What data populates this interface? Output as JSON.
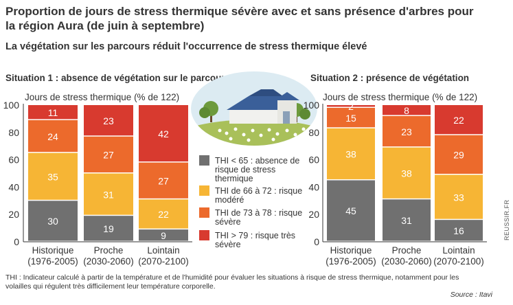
{
  "title": "Proportion de jours de stress thermique sévère avec et sans présence d'arbres pour la région Aura (de juin à septembre)",
  "subtitle": "La végétation sur les parcours réduit l'occurrence de stress thermique élevé",
  "footnote": "THI : Indicateur calculé à partir de la température et de l'humidité pour évaluer les situations à risque de stress thermique, notamment pour les volailles qui régulent très difficilement leur température corporelle.",
  "source": "Source : Itavi",
  "credit": "REUSSIR.FR",
  "colors": {
    "thi_lt65": "#707070",
    "thi_66_72": "#f6b535",
    "thi_73_78": "#ec6a2c",
    "thi_gt79": "#d83a2f",
    "illustration_sky": "#dcebf2",
    "illustration_grass": "#a9c05a",
    "barn_roof": "#3a5f99"
  },
  "icons": [
    "farm-barn-illustration",
    "trees-illustration",
    "poultry-flock-illustration"
  ],
  "chart_data": [
    {
      "type": "bar",
      "stacked": true,
      "title": "Situation 1 : absence de végétation sur le parcours",
      "ylabel": "Jours de stress thermique (% de 122)",
      "ylim": [
        0,
        100
      ],
      "yticks": [
        0,
        20,
        40,
        60,
        80,
        100
      ],
      "grid": false,
      "categories": [
        [
          "Historique",
          "(1976-2005)"
        ],
        [
          "Proche",
          "(2030-2060)"
        ],
        [
          "Lointain",
          "(2070-2100)"
        ]
      ],
      "series": [
        {
          "name": "THI < 65 : absence de risque de stress thermique",
          "color": "#707070",
          "values": [
            30,
            19,
            9
          ]
        },
        {
          "name": "THI de 66 à 72 : risque modéré",
          "color": "#f6b535",
          "values": [
            35,
            31,
            22
          ]
        },
        {
          "name": "THI de 73 à 78 : risque sévère",
          "color": "#ec6a2c",
          "values": [
            24,
            27,
            27
          ]
        },
        {
          "name": "THI > 79 : risque très sévère",
          "color": "#d83a2f",
          "values": [
            11,
            23,
            42
          ]
        }
      ]
    },
    {
      "type": "bar",
      "stacked": true,
      "title": "Situation 2 : présence de végétation",
      "ylabel": "Jours de stress thermique (% de 122)",
      "ylim": [
        0,
        100
      ],
      "yticks": [
        0,
        20,
        40,
        60,
        80,
        100
      ],
      "grid": false,
      "categories": [
        [
          "Historique",
          "(1976-2005)"
        ],
        [
          "Proche",
          "(2030-2060)"
        ],
        [
          "Lointain",
          "(2070-2100)"
        ]
      ],
      "series": [
        {
          "name": "THI < 65 : absence de risque de stress thermique",
          "color": "#707070",
          "values": [
            45,
            31,
            16
          ]
        },
        {
          "name": "THI de 66 à 72 : risque modéré",
          "color": "#f6b535",
          "values": [
            38,
            38,
            33
          ]
        },
        {
          "name": "THI de 73 à 78 : risque sévère",
          "color": "#ec6a2c",
          "values": [
            15,
            23,
            29
          ]
        },
        {
          "name": "THI > 79 : risque très sévère",
          "color": "#d83a2f",
          "values": [
            2,
            8,
            22
          ]
        }
      ]
    }
  ],
  "legend": {
    "placement": "center",
    "items": [
      {
        "lines": [
          "THI < 65 : absence de",
          "risque de stress",
          "thermique"
        ],
        "color": "#707070"
      },
      {
        "lines": [
          "THI de 66 à 72 : risque",
          "modéré"
        ],
        "color": "#f6b535"
      },
      {
        "lines": [
          "THI de 73 à 78 : risque",
          "sévère"
        ],
        "color": "#ec6a2c"
      },
      {
        "lines": [
          "THI > 79 : risque très",
          "sévère"
        ],
        "color": "#d83a2f"
      }
    ]
  }
}
